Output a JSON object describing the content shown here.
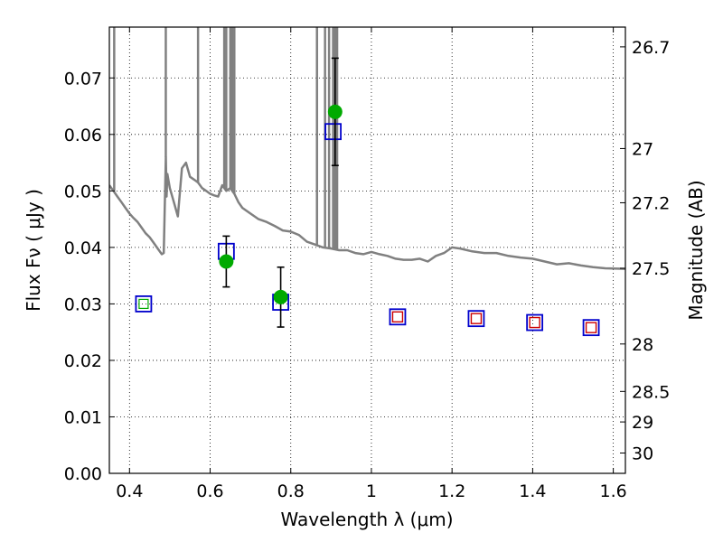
{
  "chart_data": {
    "type": "scatter",
    "xlabel": "Wavelength  λ (μm)",
    "ylabel": "Flux  Fν  ( μJy )",
    "y2label": "Magnitude (AB)",
    "xlim": [
      0.35,
      1.63
    ],
    "ylim": [
      0.0,
      0.079
    ],
    "grid": true,
    "colors": {
      "model": "#808080",
      "observed": "#00aa00",
      "blue_squares": "#0000cc",
      "red_squares": "#cc0000",
      "errorbar": "#000000"
    },
    "x_ticks": [
      {
        "value": 0.4,
        "label": "0.4"
      },
      {
        "value": 0.6,
        "label": "0.6"
      },
      {
        "value": 0.8,
        "label": "0.8"
      },
      {
        "value": 1.0,
        "label": "1"
      },
      {
        "value": 1.2,
        "label": "1.2"
      },
      {
        "value": 1.4,
        "label": "1.4"
      },
      {
        "value": 1.6,
        "label": "1.6"
      }
    ],
    "y_ticks": [
      {
        "value": 0.0,
        "label": "0.00"
      },
      {
        "value": 0.01,
        "label": "0.01"
      },
      {
        "value": 0.02,
        "label": "0.02"
      },
      {
        "value": 0.03,
        "label": "0.03"
      },
      {
        "value": 0.04,
        "label": "0.04"
      },
      {
        "value": 0.05,
        "label": "0.05"
      },
      {
        "value": 0.06,
        "label": "0.06"
      },
      {
        "value": 0.07,
        "label": "0.07"
      }
    ],
    "y2_ticks": [
      {
        "label": "26.7",
        "flux": 0.0755
      },
      {
        "label": "27",
        "flux": 0.0575
      },
      {
        "label": "27.2",
        "flux": 0.0479
      },
      {
        "label": "27.5",
        "flux": 0.0363
      },
      {
        "label": "28",
        "flux": 0.0229
      },
      {
        "label": "28.5",
        "flux": 0.0145
      },
      {
        "label": "29",
        "flux": 0.0091
      },
      {
        "label": "30",
        "flux": 0.0036
      }
    ],
    "model_spectrum": {
      "x": [
        0.35,
        0.36,
        0.37,
        0.38,
        0.39,
        0.4,
        0.41,
        0.42,
        0.43,
        0.44,
        0.45,
        0.46,
        0.47,
        0.48,
        0.485,
        0.49,
        0.492,
        0.494,
        0.5,
        0.51,
        0.52,
        0.53,
        0.54,
        0.55,
        0.56,
        0.57,
        0.58,
        0.59,
        0.6,
        0.61,
        0.62,
        0.63,
        0.64,
        0.65,
        0.66,
        0.67,
        0.68,
        0.7,
        0.72,
        0.74,
        0.76,
        0.78,
        0.8,
        0.82,
        0.84,
        0.86,
        0.88,
        0.9,
        0.92,
        0.94,
        0.96,
        0.98,
        1.0,
        1.02,
        1.04,
        1.06,
        1.08,
        1.1,
        1.12,
        1.14,
        1.16,
        1.18,
        1.2,
        1.22,
        1.25,
        1.28,
        1.31,
        1.34,
        1.37,
        1.4,
        1.43,
        1.46,
        1.49,
        1.52,
        1.55,
        1.58,
        1.63
      ],
      "y": [
        0.051,
        0.05,
        0.049,
        0.048,
        0.047,
        0.046,
        0.0452,
        0.0445,
        0.0435,
        0.0425,
        0.0418,
        0.0408,
        0.0398,
        0.0388,
        0.039,
        0.056,
        0.049,
        0.053,
        0.0505,
        0.048,
        0.0455,
        0.054,
        0.055,
        0.0525,
        0.052,
        0.0515,
        0.0505,
        0.05,
        0.0495,
        0.0492,
        0.049,
        0.051,
        0.05,
        0.0505,
        0.0495,
        0.048,
        0.047,
        0.046,
        0.045,
        0.0445,
        0.0438,
        0.043,
        0.0428,
        0.0422,
        0.041,
        0.0405,
        0.04,
        0.0398,
        0.0395,
        0.0395,
        0.039,
        0.0388,
        0.0392,
        0.0388,
        0.0385,
        0.038,
        0.0378,
        0.0378,
        0.038,
        0.0375,
        0.0385,
        0.039,
        0.04,
        0.0398,
        0.0393,
        0.039,
        0.039,
        0.0385,
        0.0382,
        0.038,
        0.0375,
        0.037,
        0.0372,
        0.0368,
        0.0365,
        0.0363,
        0.0362
      ],
      "spikes": [
        0.49,
        0.57,
        0.635,
        0.64,
        0.65,
        0.655,
        0.66,
        0.865,
        0.885,
        0.895,
        0.905,
        0.91,
        0.915
      ],
      "dips": [
        0.47,
        0.49,
        0.53,
        0.57,
        0.66,
        1.04,
        1.16
      ]
    },
    "observed": [
      {
        "x": 0.64,
        "y": 0.0375,
        "err": 0.0045
      },
      {
        "x": 0.775,
        "y": 0.0312,
        "err": 0.0053
      },
      {
        "x": 0.91,
        "y": 0.064,
        "err": 0.0095
      }
    ],
    "model_blue": [
      {
        "x": 0.435,
        "y": 0.03
      },
      {
        "x": 0.64,
        "y": 0.0393
      },
      {
        "x": 0.775,
        "y": 0.0303
      },
      {
        "x": 0.905,
        "y": 0.0605
      },
      {
        "x": 1.065,
        "y": 0.0277
      },
      {
        "x": 1.26,
        "y": 0.0274
      },
      {
        "x": 1.405,
        "y": 0.0267
      },
      {
        "x": 1.545,
        "y": 0.0258
      }
    ],
    "model_red": [
      {
        "x": 1.065,
        "y": 0.0277
      },
      {
        "x": 1.26,
        "y": 0.0274
      },
      {
        "x": 1.405,
        "y": 0.0267
      },
      {
        "x": 1.545,
        "y": 0.0258
      }
    ]
  }
}
